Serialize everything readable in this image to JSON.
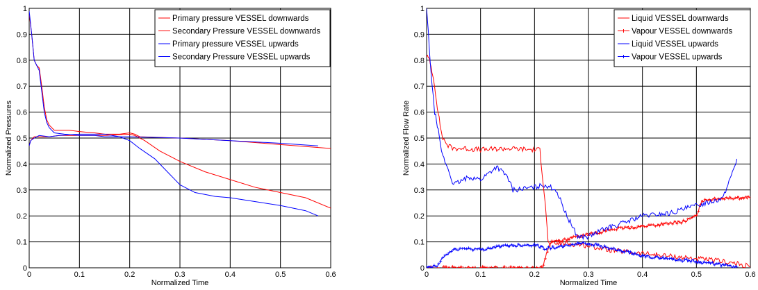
{
  "chart_data": [
    {
      "type": "line",
      "title": "",
      "xlabel": "Normalized Time",
      "ylabel": "Normalized Pressures",
      "xlim": [
        0,
        0.6
      ],
      "ylim": [
        0,
        1
      ],
      "xticks": [
        "0",
        "0.1",
        "0.2",
        "0.3",
        "0.4",
        "0.5",
        "0.6"
      ],
      "yticks": [
        "0",
        "0.1",
        "0.2",
        "0.3",
        "0.4",
        "0.5",
        "0.6",
        "0.7",
        "0.8",
        "0.9",
        "1"
      ],
      "grid": true,
      "legend_position": "top-right",
      "series": [
        {
          "name": "Primary pressure VESSEL downwards",
          "color": "#ff0000",
          "marker": "none",
          "points": [
            [
              0,
              0.98
            ],
            [
              0.005,
              0.9
            ],
            [
              0.01,
              0.8
            ],
            [
              0.015,
              0.78
            ],
            [
              0.02,
              0.77
            ],
            [
              0.025,
              0.7
            ],
            [
              0.03,
              0.62
            ],
            [
              0.035,
              0.57
            ],
            [
              0.04,
              0.55
            ],
            [
              0.05,
              0.53
            ],
            [
              0.06,
              0.53
            ],
            [
              0.08,
              0.53
            ],
            [
              0.1,
              0.525
            ],
            [
              0.13,
              0.52
            ],
            [
              0.15,
              0.515
            ],
            [
              0.18,
              0.515
            ],
            [
              0.2,
              0.52
            ],
            [
              0.21,
              0.515
            ],
            [
              0.22,
              0.505
            ],
            [
              0.3,
              0.5
            ],
            [
              0.4,
              0.49
            ],
            [
              0.5,
              0.475
            ],
            [
              0.6,
              0.46
            ]
          ]
        },
        {
          "name": "Secondary Pressure VESSEL downwards",
          "color": "#ff0000",
          "marker": "none",
          "points": [
            [
              0,
              0.47
            ],
            [
              0.003,
              0.49
            ],
            [
              0.01,
              0.505
            ],
            [
              0.02,
              0.505
            ],
            [
              0.04,
              0.505
            ],
            [
              0.06,
              0.51
            ],
            [
              0.1,
              0.51
            ],
            [
              0.15,
              0.51
            ],
            [
              0.2,
              0.515
            ],
            [
              0.21,
              0.51
            ],
            [
              0.23,
              0.49
            ],
            [
              0.26,
              0.45
            ],
            [
              0.3,
              0.41
            ],
            [
              0.35,
              0.37
            ],
            [
              0.4,
              0.34
            ],
            [
              0.45,
              0.31
            ],
            [
              0.5,
              0.29
            ],
            [
              0.55,
              0.27
            ],
            [
              0.6,
              0.23
            ]
          ]
        },
        {
          "name": "Primary pressure VESSEL upwards",
          "color": "#0000ff",
          "marker": "none",
          "points": [
            [
              0,
              0.99
            ],
            [
              0.005,
              0.9
            ],
            [
              0.01,
              0.8
            ],
            [
              0.015,
              0.78
            ],
            [
              0.02,
              0.76
            ],
            [
              0.025,
              0.68
            ],
            [
              0.03,
              0.6
            ],
            [
              0.035,
              0.56
            ],
            [
              0.04,
              0.54
            ],
            [
              0.05,
              0.52
            ],
            [
              0.07,
              0.515
            ],
            [
              0.1,
              0.51
            ],
            [
              0.13,
              0.51
            ],
            [
              0.15,
              0.505
            ],
            [
              0.2,
              0.505
            ],
            [
              0.3,
              0.5
            ],
            [
              0.4,
              0.49
            ],
            [
              0.5,
              0.48
            ],
            [
              0.575,
              0.47
            ]
          ]
        },
        {
          "name": "Secondary Pressure VESSEL upwards",
          "color": "#0000ff",
          "marker": "none",
          "points": [
            [
              0,
              0.47
            ],
            [
              0.003,
              0.49
            ],
            [
              0.01,
              0.5
            ],
            [
              0.02,
              0.51
            ],
            [
              0.04,
              0.505
            ],
            [
              0.06,
              0.51
            ],
            [
              0.1,
              0.515
            ],
            [
              0.15,
              0.515
            ],
            [
              0.18,
              0.505
            ],
            [
              0.2,
              0.49
            ],
            [
              0.22,
              0.46
            ],
            [
              0.25,
              0.42
            ],
            [
              0.28,
              0.36
            ],
            [
              0.3,
              0.32
            ],
            [
              0.33,
              0.29
            ],
            [
              0.37,
              0.275
            ],
            [
              0.4,
              0.27
            ],
            [
              0.45,
              0.255
            ],
            [
              0.5,
              0.24
            ],
            [
              0.55,
              0.22
            ],
            [
              0.575,
              0.2
            ]
          ]
        }
      ]
    },
    {
      "type": "line",
      "title": "",
      "xlabel": "Normalized Time",
      "ylabel": "Normalized Flow Rate",
      "xlim": [
        0,
        0.6
      ],
      "ylim": [
        0,
        1
      ],
      "xticks": [
        "0",
        "0.1",
        "0.2",
        "0.3",
        "0.4",
        "0.5",
        "0.6"
      ],
      "yticks": [
        "0",
        "0.1",
        "0.2",
        "0.3",
        "0.4",
        "0.5",
        "0.6",
        "0.7",
        "0.8",
        "0.9",
        "1"
      ],
      "grid": true,
      "legend_position": "top-right",
      "series": [
        {
          "name": "Liquid VESSEL downwards",
          "color": "#ff0000",
          "marker": "none",
          "points": [
            [
              0,
              0.82
            ],
            [
              0.005,
              0.8
            ],
            [
              0.01,
              0.76
            ],
            [
              0.015,
              0.7
            ],
            [
              0.02,
              0.62
            ],
            [
              0.025,
              0.55
            ],
            [
              0.03,
              0.5
            ],
            [
              0.04,
              0.47
            ],
            [
              0.05,
              0.46
            ],
            [
              0.07,
              0.46
            ],
            [
              0.1,
              0.455
            ],
            [
              0.15,
              0.46
            ],
            [
              0.2,
              0.455
            ],
            [
              0.21,
              0.455
            ],
            [
              0.215,
              0.35
            ],
            [
              0.22,
              0.25
            ],
            [
              0.225,
              0.1
            ],
            [
              0.23,
              0.09
            ],
            [
              0.25,
              0.095
            ],
            [
              0.28,
              0.09
            ],
            [
              0.3,
              0.085
            ],
            [
              0.35,
              0.065
            ],
            [
              0.4,
              0.055
            ],
            [
              0.45,
              0.045
            ],
            [
              0.5,
              0.035
            ],
            [
              0.55,
              0.025
            ],
            [
              0.6,
              0.005
            ]
          ]
        },
        {
          "name": "Vapour VESSEL downwards",
          "color": "#ff0000",
          "marker": "plus",
          "points": [
            [
              0,
              0.0
            ],
            [
              0.02,
              0.0
            ],
            [
              0.05,
              0.0
            ],
            [
              0.1,
              0.0
            ],
            [
              0.15,
              0.0
            ],
            [
              0.2,
              0.0
            ],
            [
              0.215,
              0.0
            ],
            [
              0.22,
              0.04
            ],
            [
              0.23,
              0.1
            ],
            [
              0.26,
              0.11
            ],
            [
              0.3,
              0.13
            ],
            [
              0.35,
              0.15
            ],
            [
              0.4,
              0.16
            ],
            [
              0.45,
              0.17
            ],
            [
              0.48,
              0.18
            ],
            [
              0.5,
              0.2
            ],
            [
              0.51,
              0.26
            ],
            [
              0.55,
              0.27
            ],
            [
              0.6,
              0.27
            ]
          ]
        },
        {
          "name": "Liquid VESSEL upwards",
          "color": "#0000ff",
          "marker": "none",
          "points": [
            [
              0,
              1.0
            ],
            [
              0.005,
              0.85
            ],
            [
              0.01,
              0.7
            ],
            [
              0.015,
              0.6
            ],
            [
              0.02,
              0.55
            ],
            [
              0.025,
              0.48
            ],
            [
              0.03,
              0.43
            ],
            [
              0.04,
              0.38
            ],
            [
              0.05,
              0.32
            ],
            [
              0.06,
              0.33
            ],
            [
              0.08,
              0.35
            ],
            [
              0.1,
              0.34
            ],
            [
              0.13,
              0.39
            ],
            [
              0.15,
              0.35
            ],
            [
              0.16,
              0.3
            ],
            [
              0.2,
              0.31
            ],
            [
              0.22,
              0.32
            ],
            [
              0.24,
              0.3
            ],
            [
              0.26,
              0.2
            ],
            [
              0.28,
              0.12
            ],
            [
              0.3,
              0.12
            ],
            [
              0.33,
              0.15
            ],
            [
              0.36,
              0.17
            ],
            [
              0.4,
              0.2
            ],
            [
              0.45,
              0.21
            ],
            [
              0.5,
              0.24
            ],
            [
              0.55,
              0.27
            ],
            [
              0.575,
              0.42
            ]
          ]
        },
        {
          "name": "Vapour VESSEL upwards",
          "color": "#0000ff",
          "marker": "plus",
          "points": [
            [
              0,
              0.0
            ],
            [
              0.005,
              0.002
            ],
            [
              0.01,
              0.004
            ],
            [
              0.02,
              0.005
            ],
            [
              0.03,
              0.04
            ],
            [
              0.05,
              0.07
            ],
            [
              0.07,
              0.075
            ],
            [
              0.1,
              0.07
            ],
            [
              0.13,
              0.08
            ],
            [
              0.15,
              0.085
            ],
            [
              0.2,
              0.09
            ],
            [
              0.22,
              0.075
            ],
            [
              0.25,
              0.08
            ],
            [
              0.28,
              0.095
            ],
            [
              0.3,
              0.095
            ],
            [
              0.35,
              0.07
            ],
            [
              0.4,
              0.045
            ],
            [
              0.45,
              0.035
            ],
            [
              0.5,
              0.025
            ],
            [
              0.55,
              0.01
            ],
            [
              0.575,
              0.003
            ]
          ]
        }
      ]
    }
  ]
}
